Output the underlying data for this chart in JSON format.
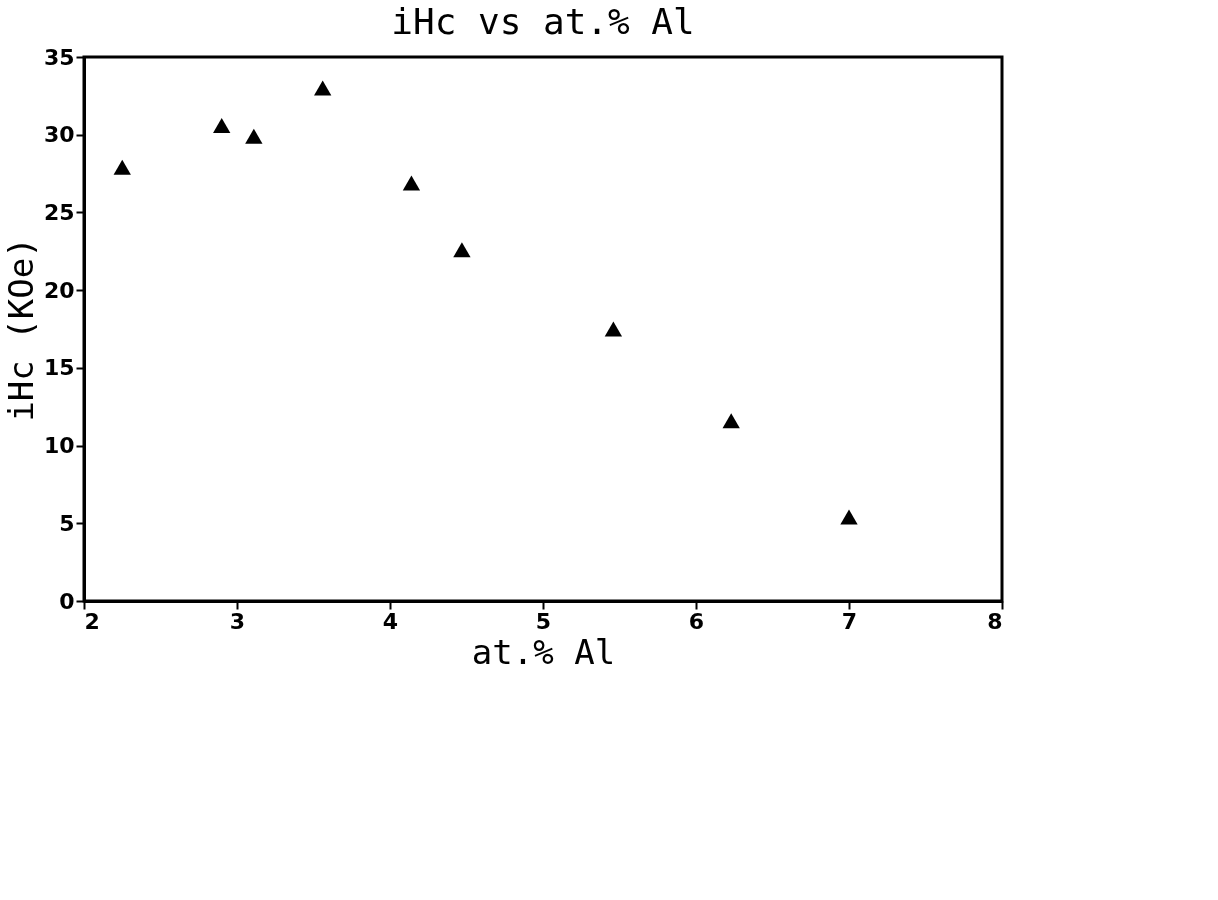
{
  "chart_data": {
    "type": "scatter",
    "title": "iHc vs at.% Al",
    "xlabel": "at.% Al",
    "ylabel": "iHc  (KOe)",
    "x": [
      2.25,
      2.9,
      3.11,
      3.56,
      4.14,
      4.47,
      5.46,
      6.23,
      7.0
    ],
    "series": [
      {
        "color": "#000000",
        "values": [
          27.9,
          30.6,
          29.9,
          33.0,
          26.9,
          22.6,
          17.5,
          11.6,
          5.4
        ]
      }
    ],
    "xlim": [
      2,
      8
    ],
    "xticks": [
      2,
      3,
      4,
      5,
      6,
      7,
      8
    ],
    "ylim": [
      0,
      35
    ],
    "yticks": [
      0,
      5,
      10,
      15,
      20,
      25,
      30,
      35
    ],
    "grid": false,
    "marker": "triangle"
  }
}
